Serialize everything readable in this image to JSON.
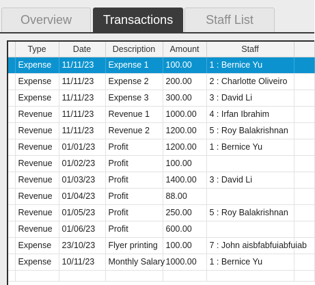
{
  "tabs": [
    {
      "label": "Overview",
      "active": false
    },
    {
      "label": "Transactions",
      "active": true
    },
    {
      "label": "Staff List",
      "active": false
    }
  ],
  "table": {
    "columns": [
      "Type",
      "Date",
      "Description",
      "Amount",
      "Staff"
    ],
    "selected_row": 0,
    "rows": [
      [
        "Expense",
        "11/11/23",
        "Expense 1",
        "100.00",
        "1 : Bernice Yu"
      ],
      [
        "Expense",
        "11/11/23",
        "Expense 2",
        "200.00",
        "2 : Charlotte Oliveiro"
      ],
      [
        "Expense",
        "11/11/23",
        "Expense 3",
        "300.00",
        "3 : David Li"
      ],
      [
        "Revenue",
        "11/11/23",
        "Revenue 1",
        "1000.00",
        "4 : Irfan Ibrahim"
      ],
      [
        "Revenue",
        "11/11/23",
        "Revenue 2",
        "1200.00",
        "5 : Roy Balakrishnan"
      ],
      [
        "Revenue",
        "01/01/23",
        "Profit",
        "1200.00",
        "1 : Bernice Yu"
      ],
      [
        "Revenue",
        "01/02/23",
        "Profit",
        "100.00",
        ""
      ],
      [
        "Revenue",
        "01/03/23",
        "Profit",
        "1400.00",
        "3 : David Li"
      ],
      [
        "Revenue",
        "01/04/23",
        "Profit",
        "88.00",
        ""
      ],
      [
        "Revenue",
        "01/05/23",
        "Profit",
        "250.00",
        "5 : Roy Balakrishnan"
      ],
      [
        "Revenue",
        "01/06/23",
        "Profit",
        "600.00",
        ""
      ],
      [
        "Expense",
        "23/10/23",
        "Flyer printing",
        "100.00",
        "7 : John aisbfabfuiabfuiab"
      ],
      [
        "Expense",
        "10/11/23",
        "Monthly Salary",
        "1000.00",
        "1 : Bernice Yu"
      ]
    ]
  }
}
